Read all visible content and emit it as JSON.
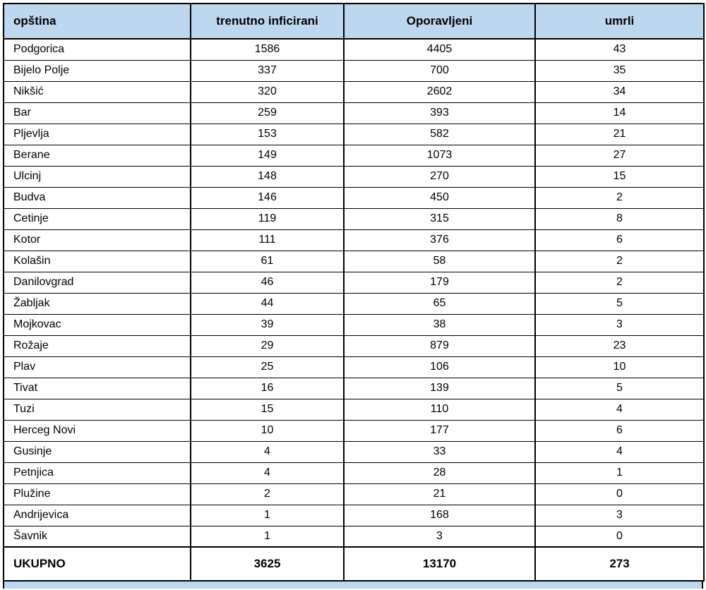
{
  "colors": {
    "header_bg": "#BDD7EE",
    "border": "#000000",
    "text": "#000000"
  },
  "chart_data": {
    "type": "table",
    "columns": [
      "opština",
      "trenutno inficirani",
      "Oporavljeni",
      "umrli"
    ],
    "rows": [
      [
        "Podgorica",
        1586,
        4405,
        43
      ],
      [
        "Bijelo Polje",
        337,
        700,
        35
      ],
      [
        "Nikšić",
        320,
        2602,
        34
      ],
      [
        "Bar",
        259,
        393,
        14
      ],
      [
        "Pljevlja",
        153,
        582,
        21
      ],
      [
        "Berane",
        149,
        1073,
        27
      ],
      [
        "Ulcinj",
        148,
        270,
        15
      ],
      [
        "Budva",
        146,
        450,
        2
      ],
      [
        "Cetinje",
        119,
        315,
        8
      ],
      [
        "Kotor",
        111,
        376,
        6
      ],
      [
        "Kolašin",
        61,
        58,
        2
      ],
      [
        "Danilovgrad",
        46,
        179,
        2
      ],
      [
        "Žabljak",
        44,
        65,
        5
      ],
      [
        "Mojkovac",
        39,
        38,
        3
      ],
      [
        "Rožaje",
        29,
        879,
        23
      ],
      [
        "Plav",
        25,
        106,
        10
      ],
      [
        "Tivat",
        16,
        139,
        5
      ],
      [
        "Tuzi",
        15,
        110,
        4
      ],
      [
        "Herceg Novi",
        10,
        177,
        6
      ],
      [
        "Gusinje",
        4,
        33,
        4
      ],
      [
        "Petnjica",
        4,
        28,
        1
      ],
      [
        "Plužine",
        2,
        21,
        0
      ],
      [
        "Andrijevica",
        1,
        168,
        3
      ],
      [
        "Šavnik",
        1,
        3,
        0
      ]
    ],
    "total_row": [
      "UKUPNO",
      3625,
      13170,
      273
    ]
  }
}
